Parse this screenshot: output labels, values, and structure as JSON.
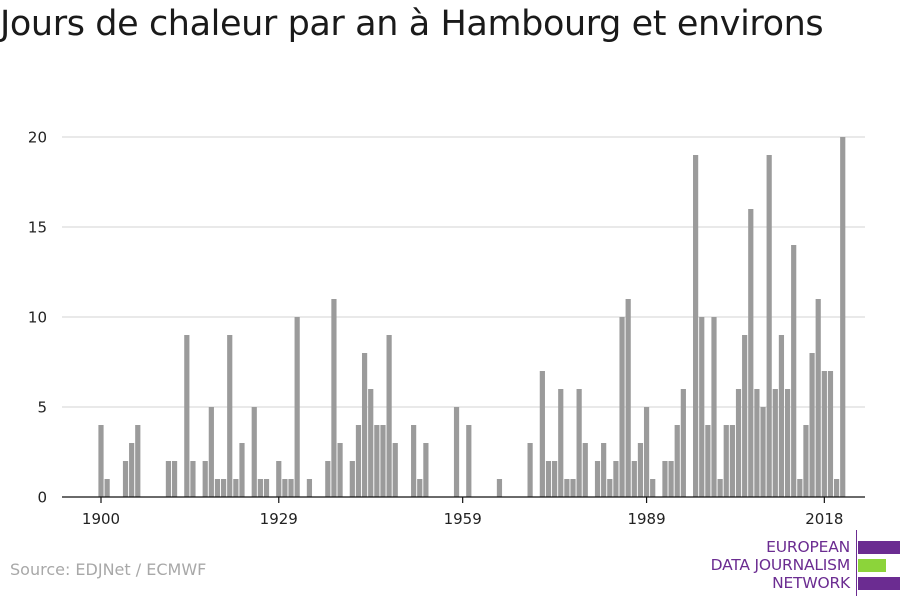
{
  "chart_data": {
    "type": "bar",
    "title": "Jours de chaleur par an à Hambourg et environs",
    "xlabel": "",
    "ylabel": "",
    "x_start": 1900,
    "x_end": 2018,
    "x_ticks": [
      "1900",
      "1929",
      "1959",
      "1989",
      "2018"
    ],
    "y_ticks": [
      "0",
      "5",
      "10",
      "15",
      "20"
    ],
    "ylim": [
      0,
      20
    ],
    "grid": true,
    "bar_color": "#9b9b9b",
    "values": [
      4,
      1,
      0,
      0,
      2,
      3,
      4,
      0,
      0,
      0,
      0,
      2,
      2,
      0,
      9,
      2,
      0,
      2,
      5,
      1,
      1,
      9,
      1,
      3,
      0,
      5,
      1,
      1,
      0,
      2,
      1,
      1,
      10,
      0,
      1,
      0,
      0,
      2,
      11,
      3,
      0,
      2,
      4,
      8,
      6,
      4,
      4,
      9,
      3,
      0,
      0,
      4,
      1,
      3,
      0,
      0,
      0,
      0,
      5,
      0,
      4,
      0,
      0,
      0,
      0,
      1,
      0,
      0,
      0,
      0,
      3,
      0,
      7,
      2,
      2,
      6,
      1,
      1,
      6,
      3,
      0,
      2,
      3,
      1,
      2,
      10,
      11,
      2,
      3,
      5,
      1,
      0,
      2,
      2,
      4,
      6,
      0,
      19,
      10,
      4,
      10,
      1,
      4,
      4,
      6,
      9,
      16,
      6,
      5,
      19,
      6,
      9,
      6,
      14,
      1,
      4,
      8,
      11,
      7,
      7,
      1,
      20
    ]
  },
  "source": "Source: EDJNet / ECMWF",
  "logo": {
    "line1": "EUROPEAN",
    "line2": "DATA JOURNALISM",
    "line3": "NETWORK",
    "colors": {
      "primary": "#6b2c91",
      "accent": "#8cd43a"
    }
  }
}
